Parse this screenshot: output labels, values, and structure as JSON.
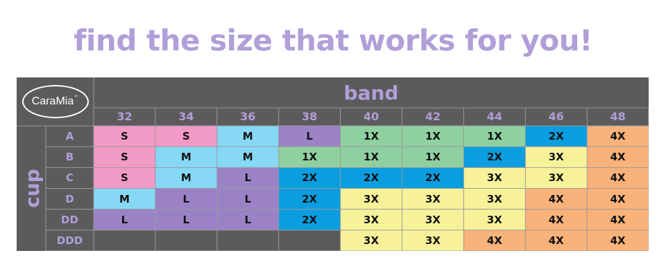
{
  "headline": "find the size that works for you!",
  "brand": {
    "logo_text": "CaraMia",
    "logo_mark": "™"
  },
  "table": {
    "band_label": "band",
    "cup_label": "cup",
    "bands": [
      "32",
      "34",
      "36",
      "38",
      "40",
      "42",
      "44",
      "46",
      "48"
    ],
    "cups": [
      "A",
      "B",
      "C",
      "D",
      "DD",
      "DDD"
    ],
    "rows": [
      [
        "S",
        "S",
        "M",
        "L",
        "1X",
        "1X",
        "1X",
        "2X",
        "4X"
      ],
      [
        "S",
        "M",
        "M",
        "1X",
        "1X",
        "1X",
        "2X",
        "3X",
        "4X"
      ],
      [
        "S",
        "M",
        "L",
        "2X",
        "2X",
        "2X",
        "3X",
        "3X",
        "4X"
      ],
      [
        "M",
        "L",
        "L",
        "2X",
        "3X",
        "3X",
        "3X",
        "4X",
        "4X"
      ],
      [
        "L",
        "L",
        "L",
        "2X",
        "3X",
        "3X",
        "3X",
        "4X",
        "4X"
      ],
      [
        "",
        "",
        "",
        "",
        "3X",
        "3X",
        "4X",
        "4X",
        "4X"
      ]
    ]
  },
  "colors": {
    "S": "#f29ac6",
    "M": "#86d8f5",
    "L": "#9b82c7",
    "1X": "#8fd0a0",
    "2X": "#0a9ee0",
    "3X": "#f7f29a",
    "4X": "#f8b27a",
    "empty": "#5b5b5b",
    "accent": "#b09fd8",
    "panel": "#5b5b5b"
  }
}
